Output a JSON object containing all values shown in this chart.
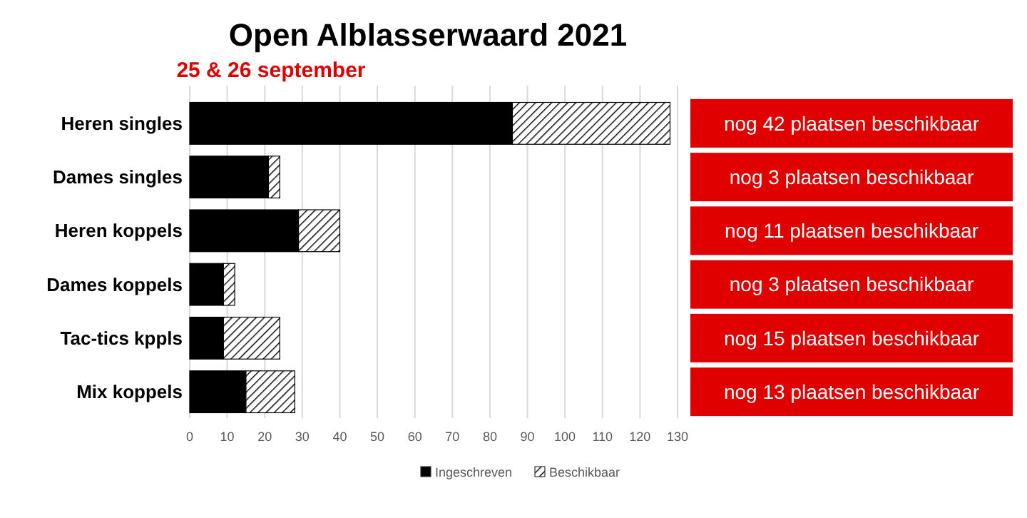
{
  "chart_data": {
    "type": "bar",
    "orientation": "horizontal",
    "stacked": true,
    "title": "Open Alblasserwaard 2021",
    "subtitle": "25 & 26 september",
    "categories": [
      "Heren singles",
      "Dames singles",
      "Heren koppels",
      "Dames koppels",
      "Tac-tics kppls",
      "Mix koppels"
    ],
    "series": [
      {
        "name": "Ingeschreven",
        "color": "#000000",
        "values": [
          86,
          21,
          29,
          9,
          9,
          15
        ]
      },
      {
        "name": "Beschikbaar",
        "color": "#000000",
        "values": [
          42,
          3,
          11,
          3,
          15,
          13
        ]
      }
    ],
    "xlim": [
      0,
      130
    ],
    "xticks": [
      0,
      10,
      20,
      30,
      40,
      50,
      60,
      70,
      80,
      90,
      100,
      110,
      120,
      130
    ],
    "grid": "x",
    "legend": "bottom",
    "annotations": [
      "nog 42 plaatsen beschikbaar",
      "nog 3 plaatsen beschikbaar",
      "nog 11 plaatsen beschikbaar",
      "nog 3 plaatsen beschikbaar",
      "nog 15 plaatsen beschikbaar",
      "nog 13 plaatsen beschikbaar"
    ]
  }
}
